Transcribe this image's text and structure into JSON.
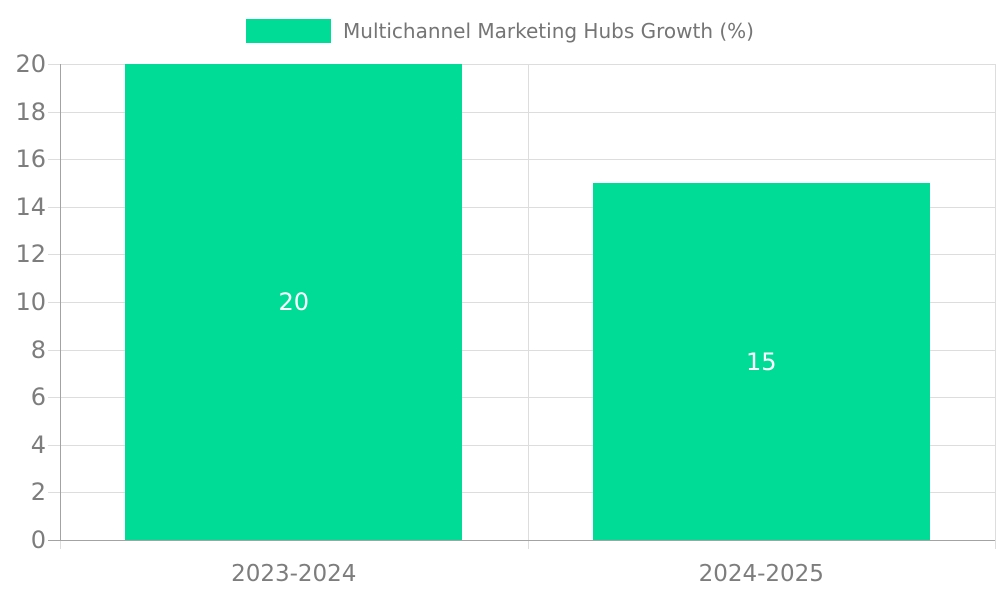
{
  "chart_data": {
    "type": "bar",
    "title": "Multichannel Marketing Hubs Growth (%)",
    "legend_label": "Multichannel Marketing Hubs Growth (%)",
    "legend_position": "top",
    "categories": [
      "2023-2024",
      "2024-2025"
    ],
    "values": [
      20,
      15
    ],
    "value_labels": [
      "20",
      "15"
    ],
    "ylim": [
      0,
      20
    ],
    "ytick_step": 2,
    "yticks": [
      0,
      2,
      4,
      6,
      8,
      10,
      12,
      14,
      16,
      18,
      20
    ],
    "grid": true,
    "colors": {
      "bar": "#00DC96",
      "value_label": "#ffffff",
      "axis_label": "#7d7d7d",
      "legend_text": "#757575",
      "gridline": "#dddddd",
      "axis_line": "#a3a3a3"
    }
  }
}
